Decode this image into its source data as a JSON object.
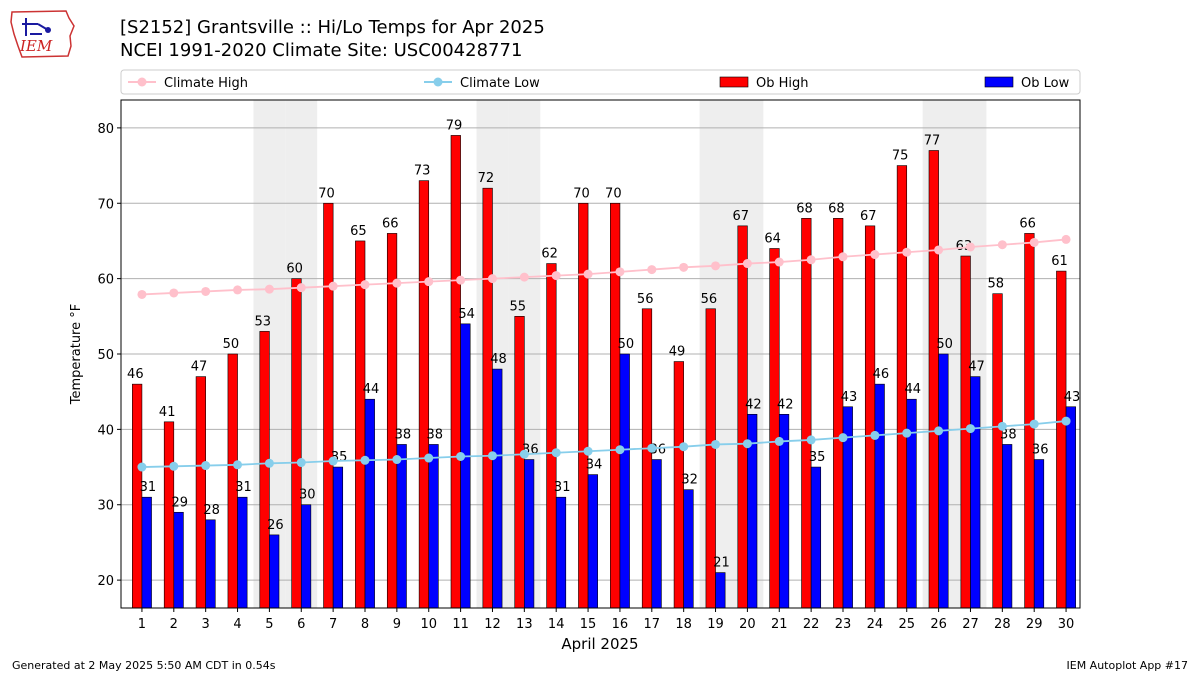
{
  "header": {
    "title_line1": "[S2152] Grantsville :: Hi/Lo Temps for Apr 2025",
    "title_line2": "NCEI 1991-2020 Climate Site: USC00428771",
    "logo_text": "IEM"
  },
  "footer": {
    "left": "Generated at 2 May 2025 5:50 AM CDT in 0.54s",
    "right": "IEM Autoplot App #17"
  },
  "colors": {
    "ob_high": "#ff0000",
    "ob_low": "#0000ff",
    "climate_high": "#ffc0cb",
    "climate_low": "#87ceeb",
    "weekend_band": "#eeeeee",
    "grid": "#b0b0b0"
  },
  "chart_data": {
    "type": "bar",
    "xlabel": "April 2025",
    "ylabel": "Temperature °F",
    "ylim": [
      16.3,
      83.7
    ],
    "yticks": [
      20,
      30,
      40,
      50,
      60,
      70,
      80
    ],
    "grid": "horizontal",
    "legend_position": "top",
    "categories": [
      "1",
      "2",
      "3",
      "4",
      "5",
      "6",
      "7",
      "8",
      "9",
      "10",
      "11",
      "12",
      "13",
      "14",
      "15",
      "16",
      "17",
      "18",
      "19",
      "20",
      "21",
      "22",
      "23",
      "24",
      "25",
      "26",
      "27",
      "28",
      "29",
      "30"
    ],
    "shaded_days": [
      "5",
      "6",
      "12",
      "13",
      "19",
      "20",
      "26",
      "27"
    ],
    "series": [
      {
        "name": "Climate High",
        "kind": "line",
        "values": [
          57.9,
          58.1,
          58.3,
          58.5,
          58.6,
          58.8,
          59.0,
          59.2,
          59.4,
          59.6,
          59.8,
          60.0,
          60.2,
          60.4,
          60.6,
          60.9,
          61.2,
          61.5,
          61.7,
          62.0,
          62.2,
          62.5,
          62.9,
          63.2,
          63.5,
          63.8,
          64.2,
          64.5,
          64.8,
          65.2
        ]
      },
      {
        "name": "Climate Low",
        "kind": "line",
        "values": [
          35.0,
          35.1,
          35.2,
          35.3,
          35.5,
          35.6,
          35.8,
          35.9,
          36.0,
          36.2,
          36.4,
          36.5,
          36.7,
          36.9,
          37.1,
          37.3,
          37.5,
          37.7,
          38.0,
          38.1,
          38.4,
          38.6,
          38.9,
          39.2,
          39.5,
          39.8,
          40.1,
          40.4,
          40.7,
          41.1
        ]
      },
      {
        "name": "Ob High",
        "kind": "bar",
        "values": [
          46,
          41,
          47,
          50,
          53,
          60,
          70,
          65,
          66,
          73,
          79,
          72,
          55,
          62,
          70,
          70,
          56,
          49,
          56,
          67,
          64,
          68,
          68,
          67,
          75,
          77,
          63,
          58,
          66,
          61
        ]
      },
      {
        "name": "Ob Low",
        "kind": "bar",
        "values": [
          31,
          29,
          28,
          31,
          26,
          30,
          35,
          44,
          38,
          38,
          54,
          48,
          36,
          31,
          34,
          50,
          36,
          32,
          21,
          42,
          42,
          35,
          43,
          46,
          44,
          50,
          47,
          38,
          36,
          43
        ]
      }
    ]
  }
}
